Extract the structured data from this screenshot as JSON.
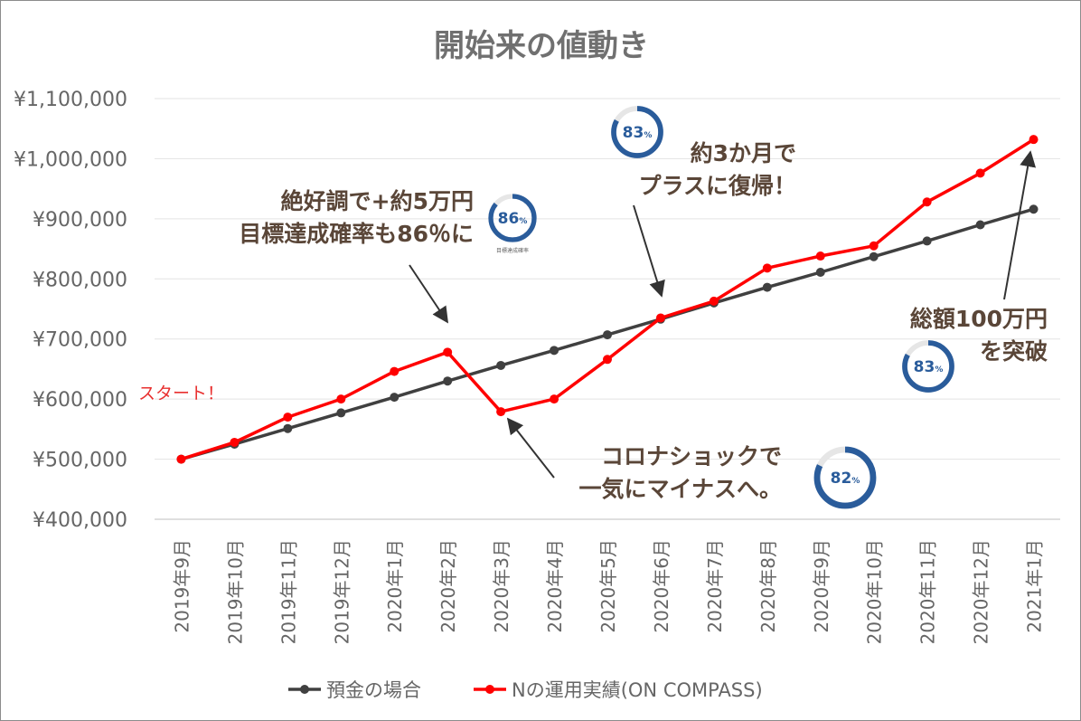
{
  "chart_data": {
    "type": "line",
    "title": "開始来の値動き",
    "categories": [
      "2019年9月",
      "2019年10月",
      "2019年11月",
      "2019年12月",
      "2020年1月",
      "2020年2月",
      "2020年3月",
      "2020年4月",
      "2020年5月",
      "2020年6月",
      "2020年7月",
      "2020年8月",
      "2020年9月",
      "2020年10月",
      "2020年11月",
      "2020年12月",
      "2021年1月"
    ],
    "series": [
      {
        "name": "預金の場合",
        "color": "#404040",
        "values": [
          500000,
          525000,
          551000,
          577000,
          603000,
          630000,
          656000,
          681000,
          707000,
          733000,
          760000,
          786000,
          811000,
          837000,
          863000,
          890000,
          916000
        ]
      },
      {
        "name": "Nの運用実績(ON COMPASS)",
        "color": "#ff0000",
        "values": [
          500000,
          528000,
          570000,
          600000,
          646000,
          678000,
          579000,
          600000,
          666000,
          735000,
          763000,
          818000,
          838000,
          855000,
          928000,
          976000,
          1032000
        ]
      }
    ],
    "ylim": [
      400000,
      1100000
    ],
    "yticks": [
      "¥400,000",
      "¥500,000",
      "¥600,000",
      "¥700,000",
      "¥800,000",
      "¥900,000",
      "¥1,000,000",
      "¥1,100,000"
    ],
    "grid": true,
    "legend_position": "bottom",
    "annotations": {
      "start": "スタート！",
      "peak": [
        "絶好調で+約5万円",
        "目標達成確率も86％に"
      ],
      "crash": [
        "コロナショックで",
        "一気にマイナスへ。"
      ],
      "recovery": [
        "約3か月で",
        "プラスに復帰！"
      ],
      "total": [
        "総額100万円",
        "を突破"
      ]
    },
    "gauges": [
      {
        "id": "gauge-86",
        "percent": 86,
        "label": "86",
        "unit": "%",
        "caption": "目標達成確率"
      },
      {
        "id": "gauge-83-top",
        "percent": 83,
        "label": "83",
        "unit": "%"
      },
      {
        "id": "gauge-82",
        "percent": 82,
        "label": "82",
        "unit": "%"
      },
      {
        "id": "gauge-83-right",
        "percent": 83,
        "label": "83",
        "unit": "%"
      }
    ]
  }
}
